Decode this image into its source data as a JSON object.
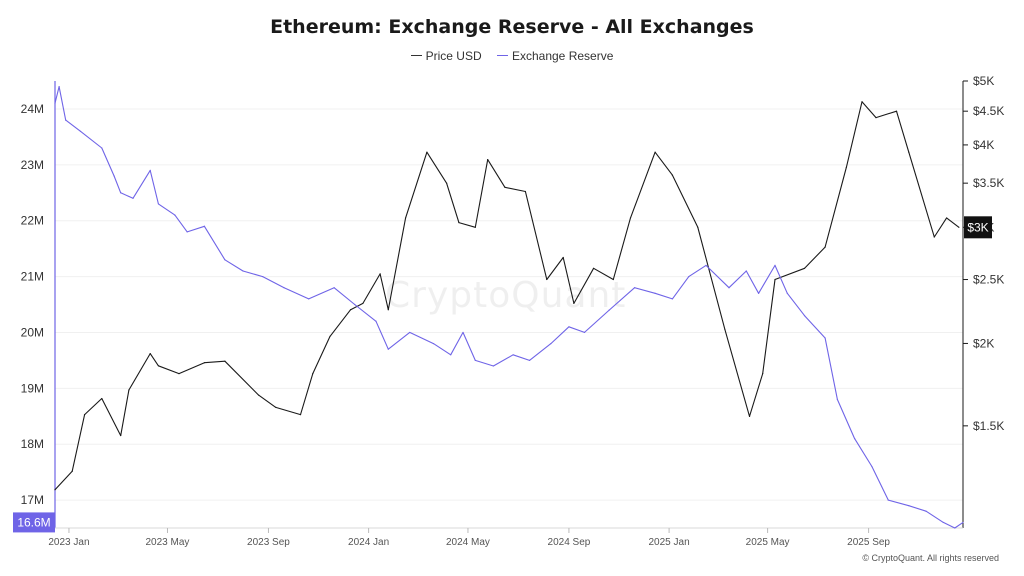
{
  "chart_data": {
    "type": "line",
    "title": "Ethereum: Exchange Reserve - All Exchanges",
    "legend_position": "top",
    "grid": true,
    "x_ticks": [
      "2023 Jan",
      "2023 May",
      "2023 Sep",
      "2024 Jan",
      "2024 May",
      "2024 Sep",
      "2025 Jan",
      "2025 May",
      "2025 Sep"
    ],
    "x_range": [
      "2022-12-15",
      "2025-12-25"
    ],
    "left_axis": {
      "ticks": [
        "17M",
        "18M",
        "19M",
        "20M",
        "21M",
        "22M",
        "23M",
        "24M"
      ],
      "range": [
        16.5,
        24.5
      ],
      "unit": "M",
      "current_label": "16.6M",
      "color": "#6f64e7"
    },
    "right_axis": {
      "ticks": [
        "$1.5K",
        "$2K",
        "$2.5K",
        "$3K",
        "$3.5K",
        "$4K",
        "$4.5K",
        "$5K"
      ],
      "range": [
        1050,
        5000
      ],
      "scale": "log",
      "current_label": "$3K",
      "color": "#1a1a1a"
    },
    "series": [
      {
        "name": "Price USD",
        "axis": "right",
        "color": "#1a1a1a",
        "x": [
          "2022-12-15",
          "2023-01-05",
          "2023-01-20",
          "2023-02-10",
          "2023-03-05",
          "2023-03-15",
          "2023-04-10",
          "2023-04-20",
          "2023-05-15",
          "2023-06-15",
          "2023-07-10",
          "2023-08-20",
          "2023-09-10",
          "2023-10-10",
          "2023-10-25",
          "2023-11-15",
          "2023-12-10",
          "2023-12-25",
          "2024-01-15",
          "2024-01-25",
          "2024-02-15",
          "2024-03-12",
          "2024-04-05",
          "2024-04-20",
          "2024-05-10",
          "2024-05-25",
          "2024-06-15",
          "2024-07-10",
          "2024-08-05",
          "2024-08-25",
          "2024-09-07",
          "2024-10-01",
          "2024-10-25",
          "2024-11-15",
          "2024-12-15",
          "2025-01-05",
          "2025-02-05",
          "2025-03-10",
          "2025-04-09",
          "2025-04-25",
          "2025-05-10",
          "2025-06-15",
          "2025-07-10",
          "2025-08-05",
          "2025-08-24",
          "2025-09-10",
          "2025-10-05",
          "2025-10-20",
          "2025-11-20",
          "2025-12-05",
          "2025-12-20"
        ],
        "values": [
          1200,
          1280,
          1560,
          1650,
          1450,
          1700,
          1930,
          1850,
          1800,
          1870,
          1880,
          1670,
          1600,
          1560,
          1800,
          2050,
          2250,
          2300,
          2550,
          2250,
          3100,
          3900,
          3500,
          3050,
          3000,
          3800,
          3450,
          3400,
          2500,
          2700,
          2300,
          2600,
          2500,
          3100,
          3900,
          3600,
          3000,
          2100,
          1550,
          1800,
          2500,
          2600,
          2800,
          3700,
          4650,
          4400,
          4500,
          3900,
          2900,
          3100,
          3000
        ]
      },
      {
        "name": "Exchange Reserve",
        "axis": "left",
        "color": "#6f64e7",
        "x": [
          "2022-12-15",
          "2022-12-20",
          "2022-12-28",
          "2023-01-15",
          "2023-02-10",
          "2023-02-25",
          "2023-03-05",
          "2023-03-20",
          "2023-04-10",
          "2023-04-20",
          "2023-05-10",
          "2023-05-25",
          "2023-06-15",
          "2023-07-10",
          "2023-08-01",
          "2023-08-25",
          "2023-09-20",
          "2023-10-20",
          "2023-11-20",
          "2023-12-15",
          "2024-01-10",
          "2024-01-25",
          "2024-02-20",
          "2024-03-20",
          "2024-04-10",
          "2024-04-25",
          "2024-05-10",
          "2024-06-01",
          "2024-06-25",
          "2024-07-15",
          "2024-08-10",
          "2024-09-01",
          "2024-09-20",
          "2024-10-20",
          "2024-11-20",
          "2024-12-15",
          "2025-01-05",
          "2025-01-25",
          "2025-02-15",
          "2025-03-15",
          "2025-04-05",
          "2025-04-20",
          "2025-05-10",
          "2025-05-25",
          "2025-06-15",
          "2025-07-10",
          "2025-07-25",
          "2025-08-15",
          "2025-09-05",
          "2025-09-25",
          "2025-10-20",
          "2025-11-10",
          "2025-12-01",
          "2025-12-15",
          "2025-12-25"
        ],
        "values": [
          24.1,
          24.4,
          23.8,
          23.6,
          23.3,
          22.8,
          22.5,
          22.4,
          22.9,
          22.3,
          22.1,
          21.8,
          21.9,
          21.3,
          21.1,
          21.0,
          20.8,
          20.6,
          20.8,
          20.5,
          20.2,
          19.7,
          20.0,
          19.8,
          19.6,
          20.0,
          19.5,
          19.4,
          19.6,
          19.5,
          19.8,
          20.1,
          20.0,
          20.4,
          20.8,
          20.7,
          20.6,
          21.0,
          21.2,
          20.8,
          21.1,
          20.7,
          21.2,
          20.7,
          20.3,
          19.9,
          18.8,
          18.1,
          17.6,
          17.0,
          16.9,
          16.8,
          16.6,
          16.5,
          16.6
        ]
      }
    ]
  },
  "footer": {
    "copyright": "© CryptoQuant. All rights reserved"
  },
  "watermark": "CryptoQuant"
}
